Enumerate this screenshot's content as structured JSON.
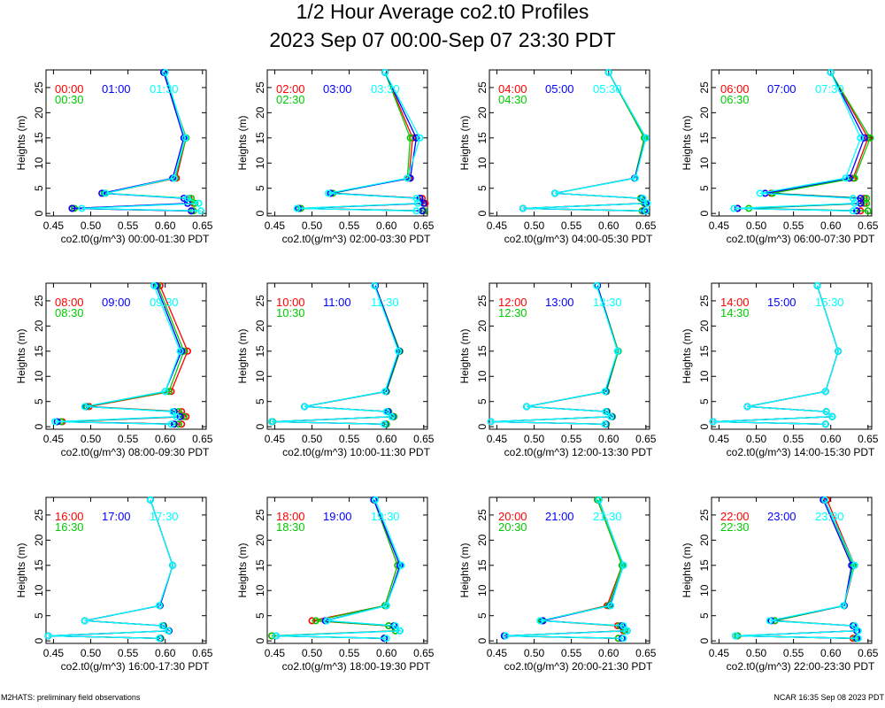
{
  "page": {
    "title": "1/2 Hour Average co2.t0 Profiles",
    "subtitle": "2023 Sep 07 00:00-Sep 07 23:30 PDT",
    "footer_left": "M2HATS: preliminary field observations",
    "footer_right": "NCAR 16:35 Sep 08 2023 PDT"
  },
  "colors": {
    "series1": "#ff0000",
    "series2": "#0000ff",
    "series3": "#00ffff",
    "series4": "#00cc00",
    "axis": "#000000"
  },
  "chart_data": [
    {
      "type": "line",
      "xlabel": "co2.t0(g/m^3) 00:00-01:30 PDT",
      "ylabel": "Heights (m)",
      "xlim": [
        0.44,
        0.655
      ],
      "ylim": [
        -0.5,
        28.5
      ],
      "xticks": [
        "0.45",
        "0.50",
        "0.55",
        "0.60",
        "0.65"
      ],
      "yticks": [
        "0",
        "5",
        "10",
        "15",
        "20",
        "25"
      ],
      "heights": [
        0.5,
        1,
        2,
        3,
        4,
        7,
        15,
        28
      ],
      "series": [
        {
          "name": "00:00",
          "color": "#ff0000",
          "values": [
            0.635,
            0.475,
            0.638,
            0.632,
            0.52,
            0.615,
            0.628,
            0.598
          ]
        },
        {
          "name": "00:30",
          "color": "#00cc00",
          "values": [
            0.638,
            0.478,
            0.64,
            0.635,
            0.518,
            0.613,
            0.628,
            0.598
          ]
        },
        {
          "name": "01:00",
          "color": "#0000ff",
          "values": [
            0.635,
            0.475,
            0.63,
            0.625,
            0.515,
            0.61,
            0.625,
            0.598
          ]
        },
        {
          "name": "01:30",
          "color": "#00ffff",
          "values": [
            0.648,
            0.488,
            0.645,
            0.63,
            0.52,
            0.612,
            0.627,
            0.6
          ]
        }
      ]
    },
    {
      "type": "line",
      "xlabel": "co2.t0(g/m^3) 02:00-03:30 PDT",
      "ylabel": "Heights (m)",
      "xlim": [
        0.44,
        0.655
      ],
      "ylim": [
        -0.5,
        28.5
      ],
      "xticks": [
        "0.45",
        "0.50",
        "0.55",
        "0.60",
        "0.65"
      ],
      "yticks": [
        "0",
        "5",
        "10",
        "15",
        "20",
        "25"
      ],
      "heights": [
        0.5,
        1,
        2,
        3,
        4,
        7,
        15,
        28
      ],
      "series": [
        {
          "name": "02:00",
          "color": "#ff0000",
          "values": [
            0.65,
            0.485,
            0.652,
            0.648,
            0.525,
            0.63,
            0.635,
            0.598
          ]
        },
        {
          "name": "02:30",
          "color": "#00cc00",
          "values": [
            0.65,
            0.485,
            0.65,
            0.645,
            0.528,
            0.628,
            0.632,
            0.598
          ]
        },
        {
          "name": "03:00",
          "color": "#0000ff",
          "values": [
            0.648,
            0.482,
            0.65,
            0.645,
            0.525,
            0.632,
            0.64,
            0.598
          ]
        },
        {
          "name": "03:30",
          "color": "#00ffff",
          "values": [
            0.64,
            0.48,
            0.642,
            0.64,
            0.522,
            0.628,
            0.645,
            0.598
          ]
        }
      ]
    },
    {
      "type": "line",
      "xlabel": "co2.t0(g/m^3) 04:00-05:30 PDT",
      "ylabel": "Heights (m)",
      "xlim": [
        0.44,
        0.655
      ],
      "ylim": [
        -0.5,
        28.5
      ],
      "xticks": [
        "0.45",
        "0.50",
        "0.55",
        "0.60",
        "0.65"
      ],
      "yticks": [
        "0",
        "5",
        "10",
        "15",
        "20",
        "25"
      ],
      "heights": [
        0.5,
        1,
        2,
        3,
        4,
        7,
        15,
        28
      ],
      "series": [
        {
          "name": "04:00",
          "color": "#ff0000",
          "values": [
            0.645,
            0.485,
            0.648,
            0.643,
            0.528,
            0.635,
            0.648,
            0.6
          ]
        },
        {
          "name": "04:30",
          "color": "#00cc00",
          "values": [
            0.645,
            0.485,
            0.648,
            0.643,
            0.528,
            0.635,
            0.648,
            0.6
          ]
        },
        {
          "name": "05:00",
          "color": "#0000ff",
          "values": [
            0.648,
            0.485,
            0.65,
            0.645,
            0.528,
            0.635,
            0.65,
            0.6
          ]
        },
        {
          "name": "05:30",
          "color": "#00ffff",
          "values": [
            0.65,
            0.485,
            0.652,
            0.646,
            0.528,
            0.636,
            0.65,
            0.6
          ]
        }
      ]
    },
    {
      "type": "line",
      "xlabel": "co2.t0(g/m^3) 06:00-07:30 PDT",
      "ylabel": "Heights (m)",
      "xlim": [
        0.44,
        0.655
      ],
      "ylim": [
        -0.5,
        28.5
      ],
      "xticks": [
        "0.45",
        "0.50",
        "0.55",
        "0.60",
        "0.65"
      ],
      "yticks": [
        "0",
        "5",
        "10",
        "15",
        "20",
        "25"
      ],
      "heights": [
        0.5,
        1,
        2,
        3,
        4,
        7,
        15,
        28
      ],
      "series": [
        {
          "name": "06:00",
          "color": "#ff0000",
          "values": [
            0.64,
            0.475,
            0.645,
            0.645,
            0.52,
            0.63,
            0.65,
            0.6
          ]
        },
        {
          "name": "06:30",
          "color": "#00cc00",
          "values": [
            0.65,
            0.49,
            0.648,
            0.648,
            0.522,
            0.632,
            0.653,
            0.6
          ]
        },
        {
          "name": "07:00",
          "color": "#0000ff",
          "values": [
            0.635,
            0.475,
            0.64,
            0.64,
            0.512,
            0.625,
            0.645,
            0.6
          ]
        },
        {
          "name": "07:30",
          "color": "#00ffff",
          "values": [
            0.63,
            0.47,
            0.632,
            0.63,
            0.505,
            0.62,
            0.64,
            0.6
          ]
        }
      ]
    },
    {
      "type": "line",
      "xlabel": "co2.t0(g/m^3) 08:00-09:30 PDT",
      "ylabel": "Heights (m)",
      "xlim": [
        0.44,
        0.655
      ],
      "ylim": [
        -0.5,
        28.5
      ],
      "xticks": [
        "0.45",
        "0.50",
        "0.55",
        "0.60",
        "0.65"
      ],
      "yticks": [
        "0",
        "5",
        "10",
        "15",
        "20",
        "25"
      ],
      "heights": [
        0.5,
        1,
        2,
        3,
        4,
        7,
        15,
        28
      ],
      "series": [
        {
          "name": "08:00",
          "color": "#ff0000",
          "values": [
            0.622,
            0.462,
            0.628,
            0.622,
            0.498,
            0.608,
            0.63,
            0.593
          ]
        },
        {
          "name": "08:30",
          "color": "#00cc00",
          "values": [
            0.618,
            0.46,
            0.625,
            0.618,
            0.495,
            0.605,
            0.625,
            0.59
          ]
        },
        {
          "name": "09:00",
          "color": "#0000ff",
          "values": [
            0.612,
            0.455,
            0.62,
            0.612,
            0.493,
            0.6,
            0.622,
            0.588
          ]
        },
        {
          "name": "09:30",
          "color": "#00ffff",
          "values": [
            0.608,
            0.452,
            0.615,
            0.61,
            0.492,
            0.6,
            0.62,
            0.585
          ]
        }
      ]
    },
    {
      "type": "line",
      "xlabel": "co2.t0(g/m^3) 10:00-11:30 PDT",
      "ylabel": "Heights (m)",
      "xlim": [
        0.44,
        0.655
      ],
      "ylim": [
        -0.5,
        28.5
      ],
      "xticks": [
        "0.45",
        "0.50",
        "0.55",
        "0.60",
        "0.65"
      ],
      "yticks": [
        "0",
        "5",
        "10",
        "15",
        "20",
        "25"
      ],
      "heights": [
        0.5,
        1,
        2,
        3,
        4,
        7,
        15,
        28
      ],
      "series": [
        {
          "name": "10:00",
          "color": "#ff0000",
          "values": [
            0.6,
            0.447,
            0.61,
            0.603,
            0.49,
            0.6,
            0.618,
            0.585
          ]
        },
        {
          "name": "10:30",
          "color": "#00cc00",
          "values": [
            0.6,
            0.447,
            0.61,
            0.603,
            0.49,
            0.6,
            0.618,
            0.585
          ]
        },
        {
          "name": "11:00",
          "color": "#0000ff",
          "values": [
            0.598,
            0.446,
            0.608,
            0.602,
            0.49,
            0.599,
            0.617,
            0.585
          ]
        },
        {
          "name": "11:30",
          "color": "#00ffff",
          "values": [
            0.597,
            0.446,
            0.607,
            0.6,
            0.49,
            0.598,
            0.616,
            0.584
          ]
        }
      ]
    },
    {
      "type": "line",
      "xlabel": "co2.t0(g/m^3) 12:00-13:30 PDT",
      "ylabel": "Heights (m)",
      "xlim": [
        0.44,
        0.655
      ],
      "ylim": [
        -0.5,
        28.5
      ],
      "xticks": [
        "0.45",
        "0.50",
        "0.55",
        "0.60",
        "0.65"
      ],
      "yticks": [
        "0",
        "5",
        "10",
        "15",
        "20",
        "25"
      ],
      "heights": [
        0.5,
        1,
        2,
        3,
        4,
        7,
        15,
        28
      ],
      "series": [
        {
          "name": "12:00",
          "color": "#ff0000",
          "values": [
            0.597,
            0.442,
            0.605,
            0.598,
            0.49,
            0.597,
            0.613,
            0.585
          ]
        },
        {
          "name": "12:30",
          "color": "#00cc00",
          "values": [
            0.597,
            0.442,
            0.605,
            0.598,
            0.49,
            0.597,
            0.613,
            0.585
          ]
        },
        {
          "name": "13:00",
          "color": "#0000ff",
          "values": [
            0.596,
            0.442,
            0.604,
            0.597,
            0.49,
            0.596,
            0.612,
            0.585
          ]
        },
        {
          "name": "13:30",
          "color": "#00ffff",
          "values": [
            0.595,
            0.442,
            0.603,
            0.596,
            0.49,
            0.595,
            0.612,
            0.584
          ]
        }
      ]
    },
    {
      "type": "line",
      "xlabel": "co2.t0(g/m^3) 14:00-15:30 PDT",
      "ylabel": "Heights (m)",
      "xlim": [
        0.44,
        0.655
      ],
      "ylim": [
        -0.5,
        28.5
      ],
      "xticks": [
        "0.45",
        "0.50",
        "0.55",
        "0.60",
        "0.65"
      ],
      "yticks": [
        "0",
        "5",
        "10",
        "15",
        "20",
        "25"
      ],
      "heights": [
        0.5,
        1,
        2,
        3,
        4,
        7,
        15,
        28
      ],
      "series": [
        {
          "name": "14:00",
          "color": "#ff0000",
          "values": [
            0.593,
            0.442,
            0.602,
            0.594,
            0.488,
            0.593,
            0.61,
            0.582
          ]
        },
        {
          "name": "14:30",
          "color": "#00cc00",
          "values": [
            0.593,
            0.442,
            0.602,
            0.594,
            0.488,
            0.593,
            0.61,
            0.582
          ]
        },
        {
          "name": "15:00",
          "color": "#0000ff",
          "values": [
            0.593,
            0.442,
            0.602,
            0.594,
            0.488,
            0.593,
            0.61,
            0.582
          ]
        },
        {
          "name": "15:30",
          "color": "#00ffff",
          "values": [
            0.593,
            0.442,
            0.602,
            0.594,
            0.488,
            0.593,
            0.61,
            0.582
          ]
        }
      ]
    },
    {
      "type": "line",
      "xlabel": "co2.t0(g/m^3) 16:00-17:30 PDT",
      "ylabel": "Heights (m)",
      "xlim": [
        0.44,
        0.655
      ],
      "ylim": [
        -0.5,
        28.5
      ],
      "xticks": [
        "0.45",
        "0.50",
        "0.55",
        "0.60",
        "0.65"
      ],
      "yticks": [
        "0",
        "5",
        "10",
        "15",
        "20",
        "25"
      ],
      "heights": [
        0.5,
        1,
        2,
        3,
        4,
        7,
        15,
        28
      ],
      "series": [
        {
          "name": "16:00",
          "color": "#ff0000",
          "values": [
            0.594,
            0.443,
            0.605,
            0.598,
            0.492,
            0.593,
            0.61,
            0.58
          ]
        },
        {
          "name": "16:30",
          "color": "#00cc00",
          "values": [
            0.594,
            0.443,
            0.605,
            0.598,
            0.492,
            0.593,
            0.61,
            0.58
          ]
        },
        {
          "name": "17:00",
          "color": "#0000ff",
          "values": [
            0.593,
            0.443,
            0.605,
            0.597,
            0.492,
            0.593,
            0.61,
            0.58
          ]
        },
        {
          "name": "17:30",
          "color": "#00ffff",
          "values": [
            0.592,
            0.443,
            0.604,
            0.596,
            0.492,
            0.592,
            0.61,
            0.58
          ]
        }
      ]
    },
    {
      "type": "line",
      "xlabel": "co2.t0(g/m^3) 18:00-19:30 PDT",
      "ylabel": "Heights (m)",
      "xlim": [
        0.44,
        0.655
      ],
      "ylim": [
        -0.5,
        28.5
      ],
      "xticks": [
        "0.45",
        "0.50",
        "0.55",
        "0.60",
        "0.65"
      ],
      "yticks": [
        "0",
        "5",
        "10",
        "15",
        "20",
        "25"
      ],
      "heights": [
        0.5,
        1,
        2,
        3,
        4,
        7,
        15,
        28
      ],
      "series": [
        {
          "name": "18:00",
          "color": "#ff0000",
          "values": [
            0.597,
            0.446,
            0.612,
            0.603,
            0.5,
            0.598,
            0.615,
            0.583
          ]
        },
        {
          "name": "18:30",
          "color": "#00cc00",
          "values": [
            0.597,
            0.446,
            0.612,
            0.603,
            0.505,
            0.598,
            0.615,
            0.583
          ]
        },
        {
          "name": "19:00",
          "color": "#0000ff",
          "values": [
            0.597,
            0.452,
            0.618,
            0.61,
            0.518,
            0.6,
            0.618,
            0.583
          ]
        },
        {
          "name": "19:30",
          "color": "#00ffff",
          "values": [
            0.6,
            0.452,
            0.618,
            0.612,
            0.52,
            0.6,
            0.62,
            0.585
          ]
        }
      ]
    },
    {
      "type": "line",
      "xlabel": "co2.t0(g/m^3) 20:00-21:30 PDT",
      "ylabel": "Heights (m)",
      "xlim": [
        0.44,
        0.655
      ],
      "ylim": [
        -0.5,
        28.5
      ],
      "xticks": [
        "0.45",
        "0.50",
        "0.55",
        "0.60",
        "0.65"
      ],
      "yticks": [
        "0",
        "5",
        "10",
        "15",
        "20",
        "25"
      ],
      "heights": [
        0.5,
        1,
        2,
        3,
        4,
        7,
        15,
        28
      ],
      "series": [
        {
          "name": "20:00",
          "color": "#ff0000",
          "values": [
            0.613,
            0.46,
            0.62,
            0.612,
            0.51,
            0.598,
            0.618,
            0.585
          ]
        },
        {
          "name": "20:30",
          "color": "#00cc00",
          "values": [
            0.613,
            0.46,
            0.622,
            0.615,
            0.51,
            0.6,
            0.618,
            0.585
          ]
        },
        {
          "name": "21:00",
          "color": "#0000ff",
          "values": [
            0.618,
            0.46,
            0.625,
            0.618,
            0.512,
            0.602,
            0.62,
            0.587
          ]
        },
        {
          "name": "21:30",
          "color": "#00ffff",
          "values": [
            0.62,
            0.462,
            0.625,
            0.62,
            0.508,
            0.603,
            0.62,
            0.587
          ]
        }
      ]
    },
    {
      "type": "line",
      "xlabel": "co2.t0(g/m^3) 22:00-23:30 PDT",
      "ylabel": "Heights (m)",
      "xlim": [
        0.44,
        0.655
      ],
      "ylim": [
        -0.5,
        28.5
      ],
      "xticks": [
        "0.45",
        "0.50",
        "0.55",
        "0.60",
        "0.65"
      ],
      "yticks": [
        "0",
        "5",
        "10",
        "15",
        "20",
        "25"
      ],
      "heights": [
        0.5,
        1,
        2,
        3,
        4,
        7,
        15,
        28
      ],
      "series": [
        {
          "name": "22:00",
          "color": "#ff0000",
          "values": [
            0.63,
            0.475,
            0.635,
            0.632,
            0.525,
            0.618,
            0.632,
            0.595
          ]
        },
        {
          "name": "22:30",
          "color": "#00cc00",
          "values": [
            0.633,
            0.475,
            0.635,
            0.63,
            0.525,
            0.618,
            0.63,
            0.592
          ]
        },
        {
          "name": "23:00",
          "color": "#0000ff",
          "values": [
            0.635,
            0.472,
            0.635,
            0.63,
            0.52,
            0.618,
            0.628,
            0.59
          ]
        },
        {
          "name": "23:30",
          "color": "#00ffff",
          "values": [
            0.637,
            0.472,
            0.637,
            0.632,
            0.518,
            0.617,
            0.632,
            0.592
          ]
        }
      ]
    }
  ]
}
